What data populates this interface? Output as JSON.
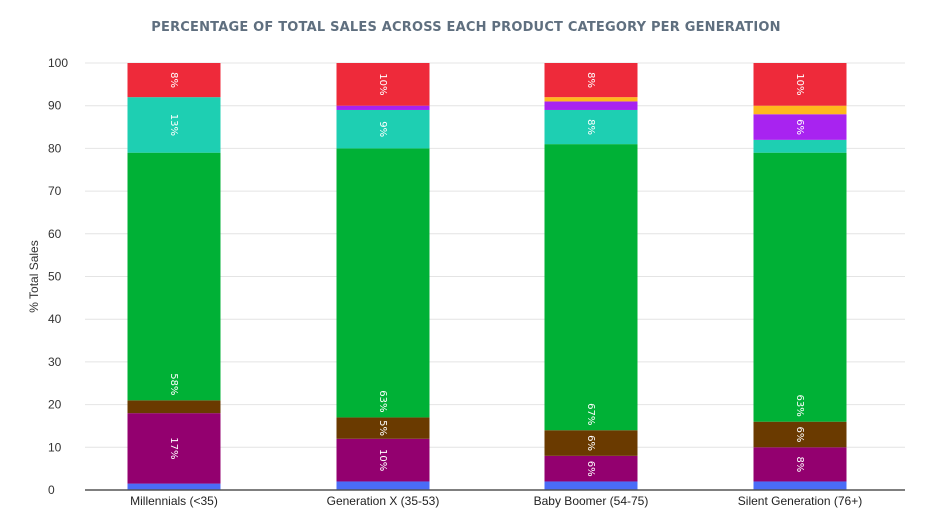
{
  "chart_data": {
    "type": "bar",
    "stacked": true,
    "title": "PERCENTAGE OF TOTAL SALES ACROSS EACH PRODUCT CATEGORY PER GENERATION",
    "ylabel": "% Total Sales",
    "xlabel": "",
    "ylim": [
      0,
      100
    ],
    "yticks": [
      0,
      10,
      20,
      30,
      40,
      50,
      60,
      70,
      80,
      90,
      100
    ],
    "grid": true,
    "legend": "none",
    "categories": [
      "Millennials (<35)",
      "Generation X (35-53)",
      "Baby Boomer (54-75)",
      "Silent Generation (76+)"
    ],
    "series": [
      {
        "color": "#4a6cf7",
        "values": [
          1.5,
          2,
          2,
          2
        ],
        "labels": [
          "",
          "",
          "",
          ""
        ]
      },
      {
        "color": "#93006f",
        "values": [
          16.5,
          10,
          6,
          8
        ],
        "labels": [
          "17%",
          "10%",
          "6%",
          "8%"
        ]
      },
      {
        "color": "#6a3a00",
        "values": [
          3,
          5,
          6,
          6
        ],
        "labels": [
          "",
          "5%",
          "6%",
          "6%"
        ]
      },
      {
        "color": "#00b136",
        "values": [
          58,
          63,
          67,
          63
        ],
        "labels": [
          "58%",
          "63%",
          "67%",
          "63%"
        ]
      },
      {
        "color": "#1ecfb2",
        "values": [
          13,
          9,
          8,
          3
        ],
        "labels": [
          "13%",
          "9%",
          "8%",
          ""
        ]
      },
      {
        "color": "#a823f0",
        "values": [
          0,
          1,
          2,
          6
        ],
        "labels": [
          "",
          "",
          "",
          "6%"
        ]
      },
      {
        "color": "#ffb71e",
        "values": [
          0,
          0,
          1,
          2
        ],
        "labels": [
          "",
          "",
          "",
          ""
        ]
      },
      {
        "color": "#ee2a3a",
        "values": [
          8,
          10,
          8,
          10
        ],
        "labels": [
          "8%",
          "10%",
          "8%",
          "10%"
        ]
      }
    ]
  }
}
